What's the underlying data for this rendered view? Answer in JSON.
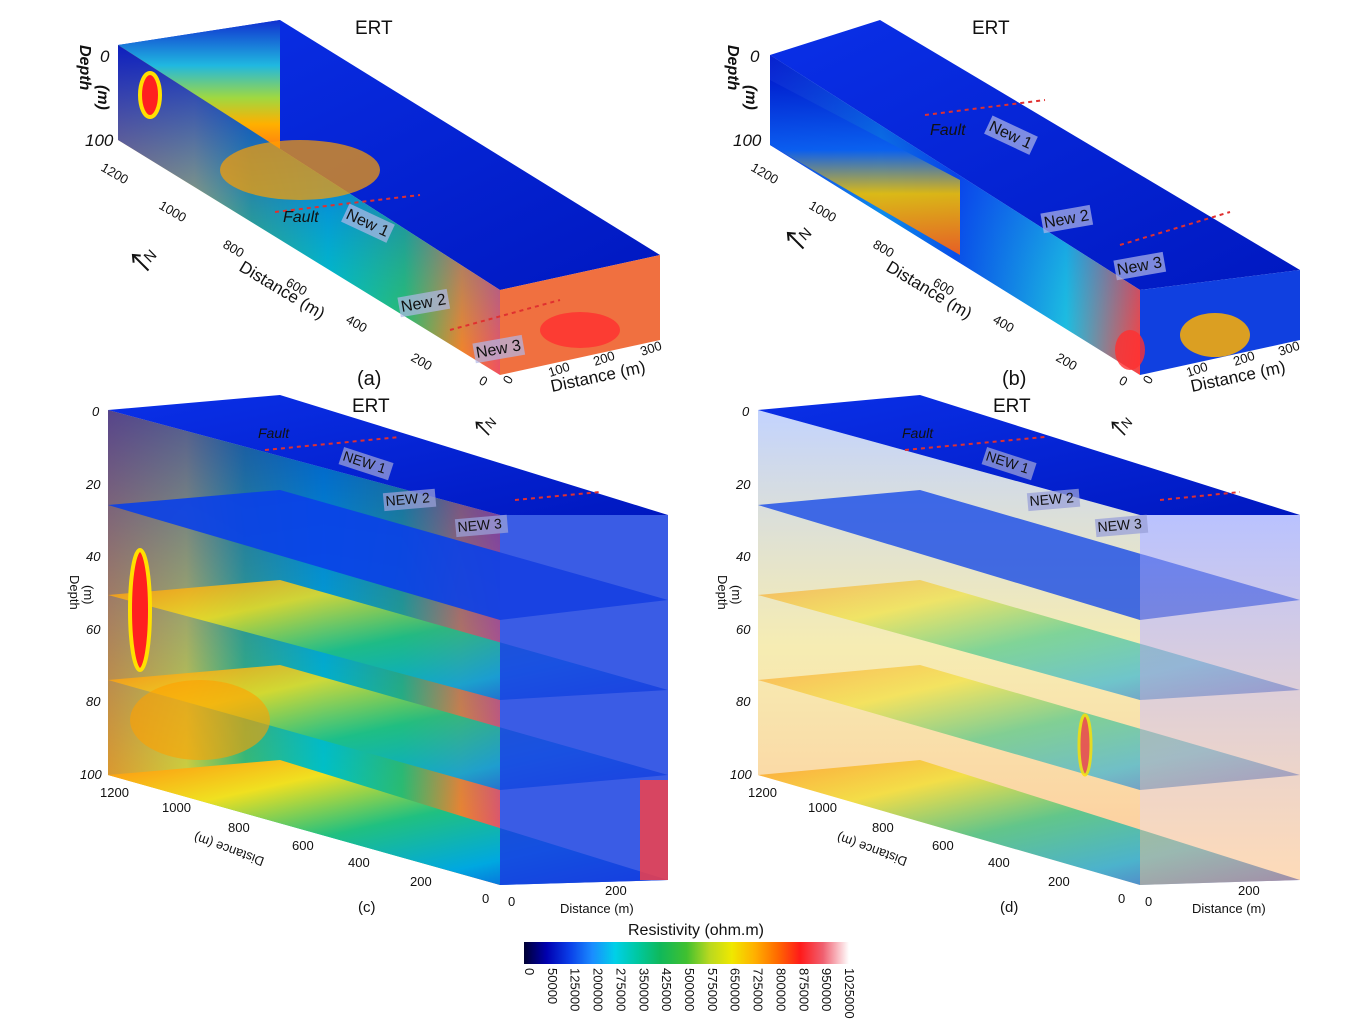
{
  "figure": {
    "panels": [
      {
        "id": "a",
        "title": "ERT",
        "caption": "(a)",
        "depth_label": "Depth\n(m)",
        "depth_ticks": [
          "0",
          "100"
        ],
        "y_distance_label": "Distance (m)",
        "y_distance_ticks": [
          "1200",
          "1000",
          "800",
          "600",
          "400",
          "200",
          "0"
        ],
        "x_distance_label": "Distance (m)",
        "x_distance_ticks": [
          "0",
          "100",
          "200",
          "300"
        ],
        "north_label": "N",
        "annotations": [
          "Fault",
          "New 1",
          "New 2",
          "New 3"
        ]
      },
      {
        "id": "b",
        "title": "ERT",
        "caption": "(b)",
        "depth_label": "Depth\n(m)",
        "depth_ticks": [
          "0",
          "100"
        ],
        "y_distance_label": "Distance (m)",
        "y_distance_ticks": [
          "1200",
          "1000",
          "800",
          "600",
          "400",
          "200",
          "0"
        ],
        "x_distance_label": "Distance (m)",
        "x_distance_ticks": [
          "0",
          "100",
          "200",
          "300"
        ],
        "north_label": "N",
        "annotations": [
          "Fault",
          "New 1",
          "New 2",
          "New 3"
        ]
      },
      {
        "id": "c",
        "title": "ERT",
        "caption": "(c)",
        "depth_label": "Depth\n(m)",
        "depth_ticks": [
          "0",
          "20",
          "40",
          "60",
          "80",
          "100"
        ],
        "y_distance_label": "Distance (m)",
        "y_distance_ticks": [
          "1200",
          "1000",
          "800",
          "600",
          "400",
          "200",
          "0"
        ],
        "x_distance_label": "Distance (m)",
        "x_distance_ticks": [
          "0",
          "200"
        ],
        "north_label": "N",
        "annotations": [
          "Fault",
          "NEW 1",
          "NEW 2",
          "NEW 3"
        ]
      },
      {
        "id": "d",
        "title": "ERT",
        "caption": "(d)",
        "depth_label": "Depth\n(m)",
        "depth_ticks": [
          "0",
          "20",
          "40",
          "60",
          "80",
          "100"
        ],
        "y_distance_label": "Distance (m)",
        "y_distance_ticks": [
          "1200",
          "1000",
          "800",
          "600",
          "400",
          "200",
          "0"
        ],
        "x_distance_label": "Distance (m)",
        "x_distance_ticks": [
          "0",
          "200"
        ],
        "north_label": "N",
        "annotations": [
          "Fault",
          "NEW 1",
          "NEW 2",
          "NEW 3"
        ]
      }
    ],
    "colorbar": {
      "title": "Resistivity (ohm.m)",
      "ticks": [
        "0",
        "50000",
        "125000",
        "200000",
        "275000",
        "350000",
        "425000",
        "500000",
        "575000",
        "650000",
        "725000",
        "800000",
        "875000",
        "950000",
        "1025000"
      ],
      "colors": [
        "#000033",
        "#0000b0",
        "#0a3ee8",
        "#1a8cff",
        "#00d0e8",
        "#00c8a0",
        "#10b85a",
        "#40c030",
        "#b8d820",
        "#f0e800",
        "#ffb000",
        "#ff6a00",
        "#ff1a1a",
        "#f06070",
        "#ffffff"
      ]
    }
  }
}
